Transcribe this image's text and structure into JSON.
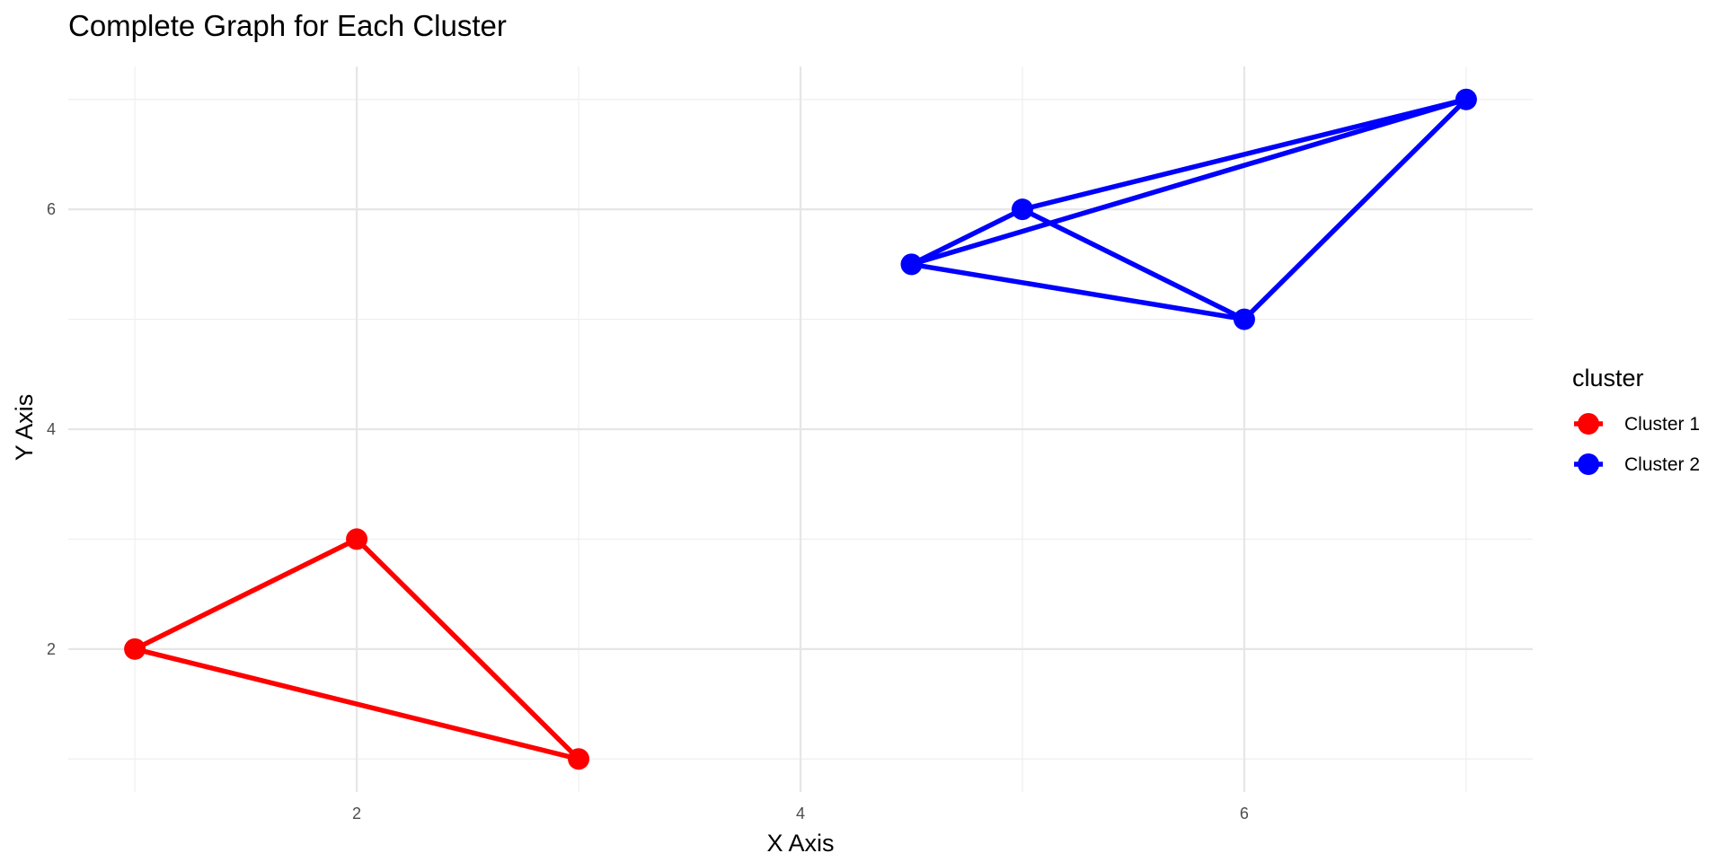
{
  "chart_data": {
    "type": "line",
    "title": "Complete Graph for Each Cluster",
    "xlabel": "X Axis",
    "ylabel": "Y Axis",
    "xlim": [
      0.7,
      7.3
    ],
    "ylim": [
      0.7,
      7.3
    ],
    "x_ticks": [
      2,
      4,
      6
    ],
    "y_ticks": [
      2,
      4,
      6
    ],
    "x_minor": [
      1,
      3,
      5,
      7
    ],
    "y_minor": [
      1,
      3,
      5,
      7
    ],
    "grid": true,
    "legend": {
      "title": "cluster",
      "placement": "right"
    },
    "series": [
      {
        "name": "Cluster 1",
        "color": "#ff0000",
        "points": [
          {
            "x": 1,
            "y": 2
          },
          {
            "x": 2,
            "y": 3
          },
          {
            "x": 3,
            "y": 1
          }
        ]
      },
      {
        "name": "Cluster 2",
        "color": "#0000ff",
        "points": [
          {
            "x": 4.5,
            "y": 5.5
          },
          {
            "x": 5,
            "y": 6
          },
          {
            "x": 6,
            "y": 5
          },
          {
            "x": 7,
            "y": 7
          }
        ]
      }
    ]
  }
}
